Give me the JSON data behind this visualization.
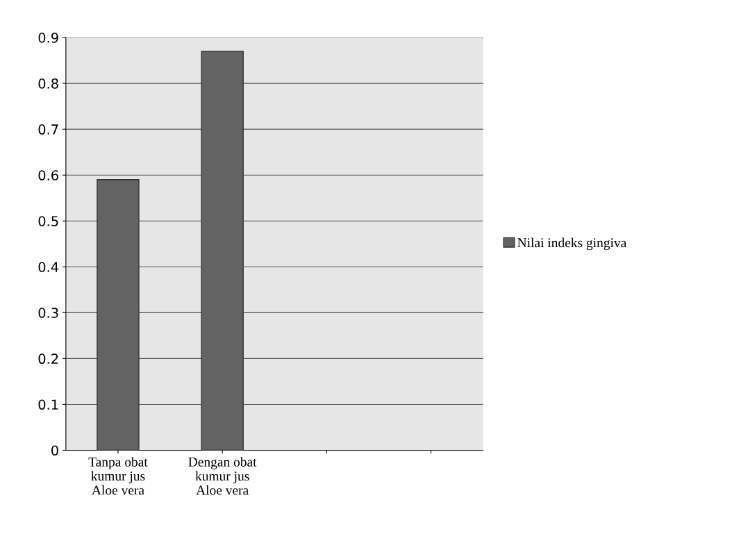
{
  "chart_data": {
    "type": "bar",
    "categories": [
      "Tanpa obat\nkumur jus\nAloe vera",
      "Dengan obat\nkumur jus\nAloe vera",
      null,
      null
    ],
    "series": [
      {
        "name": "Nilai indeks gingiva",
        "color": "#636363",
        "values": [
          0.59,
          0.87,
          null,
          null
        ]
      }
    ],
    "ylim": [
      0,
      0.9
    ],
    "yticks": [
      0,
      0.1,
      0.2,
      0.3,
      0.4,
      0.5,
      0.6,
      0.7,
      0.8,
      0.9
    ],
    "grid": "y",
    "legend": "right"
  }
}
